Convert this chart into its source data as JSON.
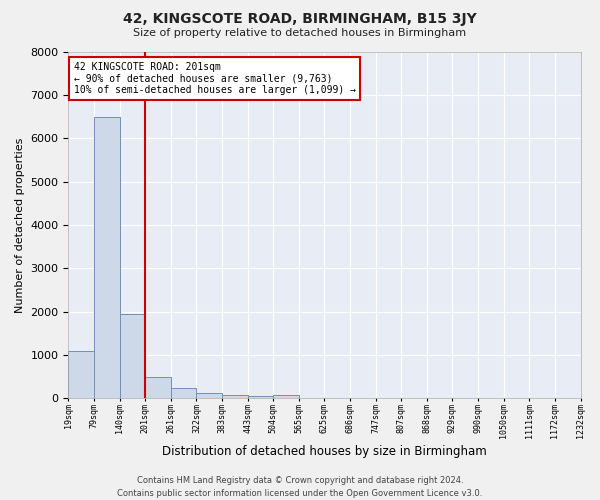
{
  "title1": "42, KINGSCOTE ROAD, BIRMINGHAM, B15 3JY",
  "title2": "Size of property relative to detached houses in Birmingham",
  "xlabel": "Distribution of detached houses by size in Birmingham",
  "ylabel": "Number of detached properties",
  "annotation_line1": "42 KINGSCOTE ROAD: 201sqm",
  "annotation_line2": "← 90% of detached houses are smaller (9,763)",
  "annotation_line3": "10% of semi-detached houses are larger (1,099) →",
  "footnote1": "Contains HM Land Registry data © Crown copyright and database right 2024.",
  "footnote2": "Contains public sector information licensed under the Open Government Licence v3.0.",
  "bar_color": "#cdd8e8",
  "bar_edge_color": "#7090b8",
  "marker_line_color": "#cc0000",
  "background_color": "#e8ecf5",
  "fig_background_color": "#f0f0f0",
  "grid_color": "#ffffff",
  "annotation_box_color": "#ffffff",
  "annotation_box_edge": "#cc0000",
  "bin_labels": [
    "19sqm",
    "79sqm",
    "140sqm",
    "201sqm",
    "261sqm",
    "322sqm",
    "383sqm",
    "443sqm",
    "504sqm",
    "565sqm",
    "625sqm",
    "686sqm",
    "747sqm",
    "807sqm",
    "868sqm",
    "929sqm",
    "990sqm",
    "1050sqm",
    "1111sqm",
    "1172sqm",
    "1232sqm"
  ],
  "bar_heights": [
    1100,
    6500,
    1950,
    500,
    230,
    120,
    80,
    60,
    70,
    0,
    0,
    0,
    0,
    0,
    0,
    0,
    0,
    0,
    0,
    0
  ],
  "property_bar_index": 3,
  "ylim": [
    0,
    8000
  ],
  "yticks": [
    0,
    1000,
    2000,
    3000,
    4000,
    5000,
    6000,
    7000,
    8000
  ]
}
